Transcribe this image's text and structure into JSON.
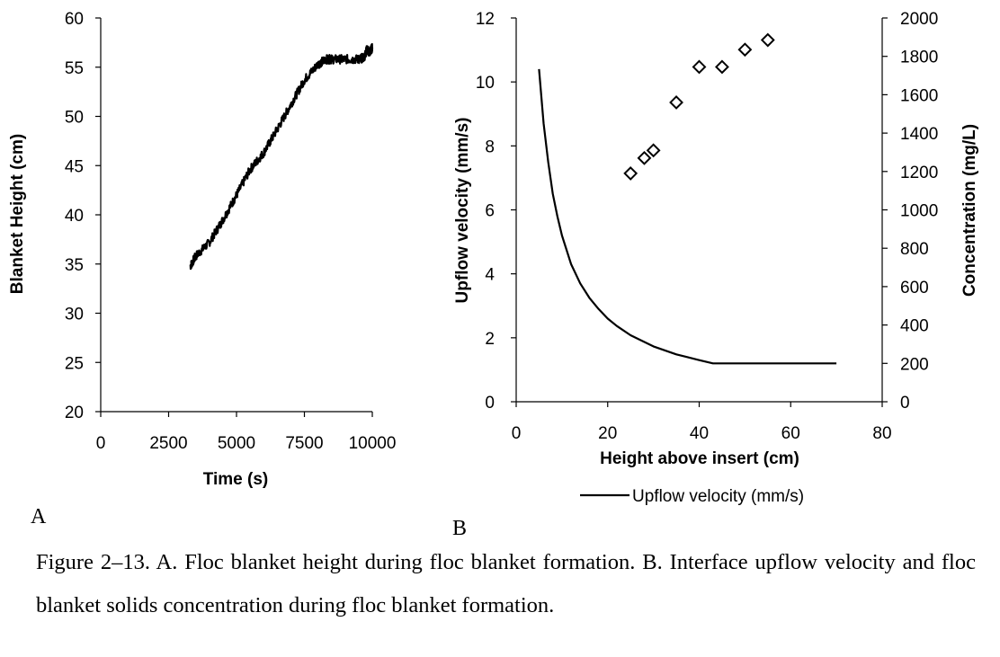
{
  "panel_labels": {
    "a": "A",
    "b": "B"
  },
  "caption": "Figure 2–13. A. Floc blanket height during floc blanket formation. B. Interface upflow velocity and floc blanket solids concentration during floc blanket formation.",
  "chart_data": [
    {
      "panel": "A",
      "type": "line",
      "xlabel": "Time (s)",
      "ylabel": "Blanket Height (cm)",
      "xlim": [
        0,
        10000
      ],
      "ylim": [
        20,
        60
      ],
      "xticks": [
        0,
        2500,
        5000,
        7500,
        10000
      ],
      "yticks": [
        20,
        25,
        30,
        35,
        40,
        45,
        50,
        55,
        60
      ],
      "grid": false,
      "series": [
        {
          "color": "#000000",
          "x": [
            3300,
            3500,
            4000,
            4500,
            5000,
            5500,
            6000,
            6500,
            7000,
            7500,
            8000,
            8300,
            8500,
            9000,
            9500,
            9700,
            9800,
            9900,
            10000
          ],
          "y": [
            34.8,
            35.8,
            37.2,
            39.5,
            42.0,
            44.6,
            46.3,
            48.7,
            51.2,
            53.7,
            55.3,
            55.8,
            55.8,
            55.8,
            55.8,
            56.0,
            56.8,
            56.5,
            57.0
          ]
        }
      ]
    },
    {
      "panel": "B",
      "type": "line",
      "xlabel": "Height above insert (cm)",
      "ylabel": "Upflow velocity (mm/s)",
      "y2label": "Concentration (mg/L)",
      "xlim": [
        0,
        80
      ],
      "ylim": [
        0,
        12
      ],
      "y2lim": [
        0,
        2000
      ],
      "xticks": [
        0,
        20,
        40,
        60,
        80
      ],
      "yticks": [
        0,
        2,
        4,
        6,
        8,
        10,
        12
      ],
      "y2ticks": [
        0,
        200,
        400,
        600,
        800,
        1000,
        1200,
        1400,
        1600,
        1800,
        2000
      ],
      "grid": false,
      "legend_position": "bottom",
      "series": [
        {
          "name": "Upflow velocity (mm/s)",
          "type": "line",
          "axis": "left",
          "color": "#000000",
          "x": [
            5,
            6,
            7,
            8,
            9,
            10,
            12,
            14,
            16,
            18,
            20,
            22,
            25,
            30,
            35,
            40,
            43,
            50,
            60,
            70
          ],
          "y": [
            10.4,
            8.7,
            7.5,
            6.5,
            5.8,
            5.2,
            4.3,
            3.7,
            3.25,
            2.9,
            2.6,
            2.37,
            2.08,
            1.73,
            1.48,
            1.3,
            1.2,
            1.2,
            1.2,
            1.2
          ]
        },
        {
          "type": "scatter",
          "axis": "right",
          "marker": "diamond-open",
          "color": "#000000",
          "x": [
            25,
            28,
            30,
            35,
            40,
            45,
            50,
            55
          ],
          "y": [
            1190,
            1270,
            1310,
            1560,
            1745,
            1745,
            1835,
            1885
          ]
        }
      ]
    }
  ]
}
